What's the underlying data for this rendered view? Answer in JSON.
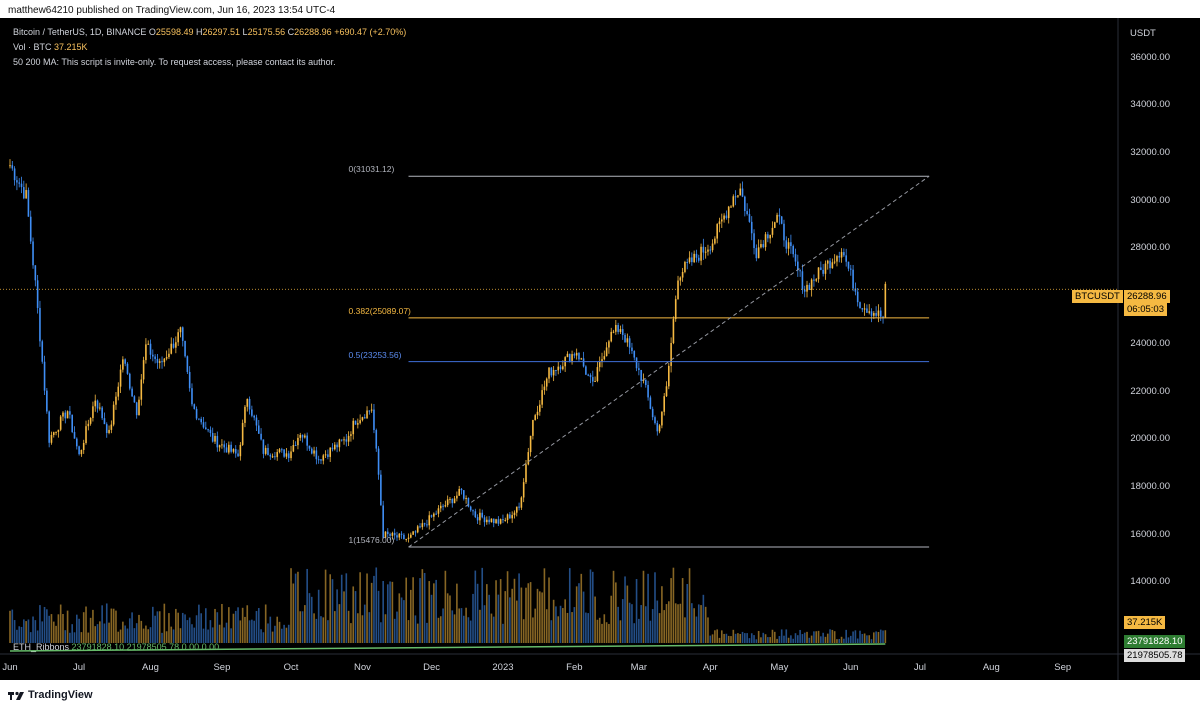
{
  "caption": "matthew64210 published on TradingView.com, Jun 16, 2023 13:54 UTC-4",
  "legend": {
    "title": "Bitcoin / TetherUS, 1D, BINANCE",
    "o_label": "O",
    "o_val": "25598.49",
    "h_label": "H",
    "h_val": "26297.51",
    "l_label": "L",
    "l_val": "25175.56",
    "c_label": "C",
    "c_val": "26288.96",
    "change": "+690.47 (+2.70%)",
    "vol_label": "Vol · BTC",
    "vol_val": "37.215K",
    "script_note": "50 200 MA: This script is invite-only. To request access, please contact its author.",
    "ribbons_label": "ETH_Ribbons",
    "ribbons_vals": "23791828.10 21978505.78 0.00 0.00"
  },
  "axis": {
    "currency": "USDT",
    "y_ticks": [
      "36000.00",
      "34000.00",
      "32000.00",
      "30000.00",
      "28000.00",
      "24000.00",
      "22000.00",
      "20000.00",
      "18000.00",
      "16000.00",
      "14000.00"
    ],
    "x_ticks": [
      "Jun",
      "Jul",
      "Aug",
      "Sep",
      "Oct",
      "Nov",
      "Dec",
      "2023",
      "Feb",
      "Mar",
      "Apr",
      "May",
      "Jun",
      "Jul",
      "Aug",
      "Sep"
    ]
  },
  "tags": {
    "symbol": "BTCUSDT",
    "price": "26288.96",
    "countdown": "06:05:03",
    "vol": "37.215K",
    "rib1": "23791828.10",
    "rib2": "21978505.78"
  },
  "fib": {
    "level0": "0(31031.12)",
    "level382": "0.382(25089.07)",
    "level5": "0.5(23253.56)",
    "level1": "1(15476.00)"
  },
  "colors": {
    "up": "#f5b942",
    "down": "#3f8ef5",
    "fib0": "#b2b5be",
    "fib382": "#f5b942",
    "fib5": "#3f6fd9",
    "ribbon": "#66bb6a"
  },
  "footer": {
    "brand": "TradingView"
  },
  "chart_data": {
    "type": "candlestick",
    "title": "Bitcoin / TetherUS, 1D, BINANCE",
    "ylim": [
      12500,
      37500
    ],
    "x_range": [
      "2022-06-01",
      "2023-09-25"
    ],
    "anchors": [
      {
        "date": "2022-06-01",
        "close": 31500
      },
      {
        "date": "2022-06-08",
        "close": 30200
      },
      {
        "date": "2022-06-12",
        "close": 26500
      },
      {
        "date": "2022-06-18",
        "close": 20000
      },
      {
        "date": "2022-06-26",
        "close": 21200
      },
      {
        "date": "2022-07-01",
        "close": 19300
      },
      {
        "date": "2022-07-08",
        "close": 21700
      },
      {
        "date": "2022-07-14",
        "close": 20200
      },
      {
        "date": "2022-07-20",
        "close": 23400
      },
      {
        "date": "2022-07-26",
        "close": 21200
      },
      {
        "date": "2022-07-30",
        "close": 23900
      },
      {
        "date": "2022-08-05",
        "close": 23100
      },
      {
        "date": "2022-08-14",
        "close": 24500
      },
      {
        "date": "2022-08-19",
        "close": 21400
      },
      {
        "date": "2022-08-28",
        "close": 20000
      },
      {
        "date": "2022-09-08",
        "close": 19300
      },
      {
        "date": "2022-09-12",
        "close": 21800
      },
      {
        "date": "2022-09-19",
        "close": 19500
      },
      {
        "date": "2022-09-30",
        "close": 19400
      },
      {
        "date": "2022-10-05",
        "close": 20300
      },
      {
        "date": "2022-10-13",
        "close": 19200
      },
      {
        "date": "2022-10-25",
        "close": 20000
      },
      {
        "date": "2022-10-29",
        "close": 20800
      },
      {
        "date": "2022-11-05",
        "close": 21300
      },
      {
        "date": "2022-11-08",
        "close": 18500
      },
      {
        "date": "2022-11-10",
        "close": 16000
      },
      {
        "date": "2022-11-21",
        "close": 15800
      },
      {
        "date": "2022-12-05",
        "close": 17100
      },
      {
        "date": "2022-12-14",
        "close": 17800
      },
      {
        "date": "2022-12-20",
        "close": 16800
      },
      {
        "date": "2022-12-31",
        "close": 16500
      },
      {
        "date": "2023-01-08",
        "close": 17100
      },
      {
        "date": "2023-01-14",
        "close": 20800
      },
      {
        "date": "2023-01-21",
        "close": 22800
      },
      {
        "date": "2023-02-02",
        "close": 23700
      },
      {
        "date": "2023-02-09",
        "close": 22200
      },
      {
        "date": "2023-02-16",
        "close": 24300
      },
      {
        "date": "2023-02-21",
        "close": 24700
      },
      {
        "date": "2023-03-03",
        "close": 22400
      },
      {
        "date": "2023-03-09",
        "close": 20300
      },
      {
        "date": "2023-03-13",
        "close": 22100
      },
      {
        "date": "2023-03-18",
        "close": 26900
      },
      {
        "date": "2023-04-02",
        "close": 28300
      },
      {
        "date": "2023-04-11",
        "close": 30200
      },
      {
        "date": "2023-04-14",
        "close": 30500
      },
      {
        "date": "2023-04-21",
        "close": 27900
      },
      {
        "date": "2023-04-30",
        "close": 29300
      },
      {
        "date": "2023-05-12",
        "close": 26300
      },
      {
        "date": "2023-05-28",
        "close": 28000
      },
      {
        "date": "2023-06-05",
        "close": 25700
      },
      {
        "date": "2023-06-15",
        "close": 25100
      },
      {
        "date": "2023-06-16",
        "close": 26289
      }
    ],
    "fib_levels": [
      {
        "ratio": 0,
        "price": 31031.12
      },
      {
        "ratio": 0.382,
        "price": 25089.07
      },
      {
        "ratio": 0.5,
        "price": 23253.56
      },
      {
        "ratio": 1,
        "price": 15476.0
      }
    ],
    "last_close": 26288.96,
    "volume_last": "37.215K"
  }
}
